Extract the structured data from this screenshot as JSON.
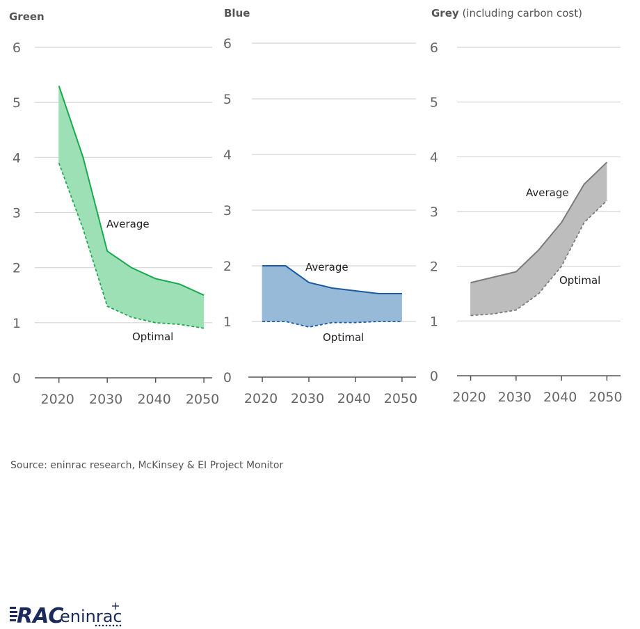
{
  "source": "Source: eninrac research, McKinsey & EI Project Monitor",
  "logo": {
    "mark": "RAC",
    "name": "eninrac"
  },
  "chart_data": [
    {
      "type": "area",
      "title_bold": "Green",
      "title_rest": "",
      "ylim": [
        0,
        6
      ],
      "y_ticks": [
        "0",
        "1",
        "2",
        "3",
        "4",
        "5",
        "6"
      ],
      "x_ticks": [
        "2020",
        "2030",
        "2040",
        "2050"
      ],
      "color": "#1aa84e",
      "fill": "#9ee0b6",
      "series": [
        {
          "name": "Average",
          "x": [
            2020,
            2025,
            2030,
            2035,
            2040,
            2045,
            2050
          ],
          "values": [
            5.3,
            4.0,
            2.3,
            2.0,
            1.8,
            1.7,
            1.5
          ]
        },
        {
          "name": "Optimal",
          "x": [
            2020,
            2025,
            2030,
            2035,
            2040,
            2045,
            2050
          ],
          "values": [
            3.9,
            2.7,
            1.3,
            1.1,
            1.0,
            0.97,
            0.9
          ]
        }
      ]
    },
    {
      "type": "area",
      "title_bold": "Blue",
      "title_rest": "",
      "ylim": [
        0,
        6
      ],
      "y_ticks": [
        "0",
        "1",
        "2",
        "3",
        "4",
        "5",
        "6"
      ],
      "x_ticks": [
        "2020",
        "2030",
        "2040",
        "2050"
      ],
      "color": "#1a5aa0",
      "fill": "#98bad9",
      "series": [
        {
          "name": "Average",
          "x": [
            2020,
            2025,
            2030,
            2035,
            2040,
            2045,
            2050
          ],
          "values": [
            2.0,
            2.0,
            1.7,
            1.6,
            1.55,
            1.5,
            1.5
          ]
        },
        {
          "name": "Optimal",
          "x": [
            2020,
            2025,
            2030,
            2035,
            2040,
            2045,
            2050
          ],
          "values": [
            1.0,
            1.0,
            0.9,
            0.98,
            0.98,
            1.0,
            1.0
          ]
        }
      ]
    },
    {
      "type": "area",
      "title_bold": "Grey",
      "title_rest": " (including carbon cost)",
      "ylim": [
        0,
        6
      ],
      "y_ticks": [
        "0",
        "1",
        "2",
        "3",
        "4",
        "5",
        "6"
      ],
      "x_ticks": [
        "2020",
        "2030",
        "2040",
        "2050"
      ],
      "color": "#7a7a7a",
      "fill": "#bdbdbd",
      "series": [
        {
          "name": "Average",
          "x": [
            2020,
            2025,
            2030,
            2035,
            2040,
            2045,
            2050
          ],
          "values": [
            1.7,
            1.8,
            1.9,
            2.3,
            2.8,
            3.5,
            3.9
          ]
        },
        {
          "name": "Optimal",
          "x": [
            2020,
            2025,
            2030,
            2035,
            2040,
            2045,
            2050
          ],
          "values": [
            1.1,
            1.13,
            1.2,
            1.5,
            2.0,
            2.8,
            3.2
          ]
        }
      ]
    }
  ]
}
